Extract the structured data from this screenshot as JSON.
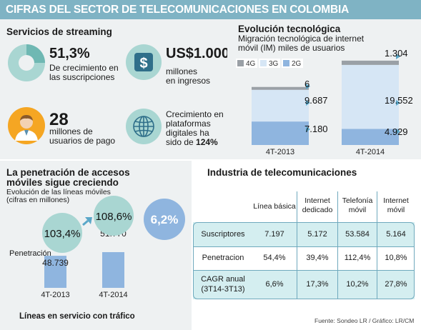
{
  "title": "CIFRAS DEL SECTOR DE TELECOMUNICACIONES EN COLOMBIA",
  "colors": {
    "accent": "#7fb3c4",
    "panel": "#eef1f2",
    "mint": "#a9d6d2",
    "bar_blue": "#8fb5df",
    "bar_light": "#d6e6f5",
    "bar_gray": "#9aa0a6",
    "arrow": "#5aa7c8"
  },
  "streaming": {
    "title": "Servicios de streaming",
    "growth_value": "51,3%",
    "growth_label_1": "De crecimiento en",
    "growth_label_2": "las suscripciones",
    "revenue_value": "US$1.000",
    "revenue_label_1": "millones",
    "revenue_label_2": "en ingresos",
    "users_value": "28",
    "users_label_1": "millones de",
    "users_label_2": "usuarios de pago",
    "platforms_1": "Crecimiento en",
    "platforms_2": "plataformas",
    "platforms_3": "digitales ha",
    "platforms_4a": "sido de ",
    "platforms_4b": "124%",
    "icons": [
      "donut-chart-icon",
      "dollar-icon",
      "user-icon",
      "globe-icon"
    ]
  },
  "tech": {
    "title": "Evolución tecnológica",
    "subtitle_1": "Migración tecnológica de internet",
    "subtitle_2": "móvil (IM) miles de usuarios",
    "legend": [
      "4G",
      "3G",
      "2G"
    ]
  },
  "mobile": {
    "title_1": "La penetración de accesos",
    "title_2": "móviles sigue creciendo",
    "subtitle_1": "Evolución de las líneas móviles",
    "subtitle_2": "(cifras en millones)",
    "penetration_label": "Penetración",
    "bubble_growth": "6,2%",
    "footer": "Líneas en servicio con tráfico"
  },
  "industry": {
    "title": "Industria de telecomunicaciones",
    "columns": [
      {
        "l1": "Línea básica",
        "l2": ""
      },
      {
        "l1": "Internet",
        "l2": "dedicado"
      },
      {
        "l1": "Telefonía",
        "l2": "móvil"
      },
      {
        "l1": "Internet",
        "l2": "móvil"
      }
    ],
    "rows": [
      {
        "label_1": "Suscriptores",
        "label_2": "",
        "values": [
          "7.197",
          "5.172",
          "53.584",
          "5.164"
        ]
      },
      {
        "label_1": "Penetracion",
        "label_2": "",
        "values": [
          "54,4%",
          "39,4%",
          "112,4%",
          "10,8%"
        ]
      },
      {
        "label_1": "CAGR anual",
        "label_2": "(3T14-3T13)",
        "values": [
          "6,6%",
          "17,3%",
          "10,2%",
          "27,8%"
        ]
      }
    ]
  },
  "source": "Fuente: Sondeo LR / Gráfico: LR/CM",
  "chart_data": [
    {
      "type": "bar",
      "title": "Evolución tecnológica",
      "subtitle": "Migración tecnológica de internet móvil (IM) miles de usuarios",
      "stacked": true,
      "categories": [
        "4T-2013",
        "4T-2014"
      ],
      "series": [
        {
          "name": "2G",
          "values": [
            7180,
            4929
          ],
          "labels": [
            "7.180",
            "4.929"
          ]
        },
        {
          "name": "3G",
          "values": [
            9687,
            19552
          ],
          "labels": [
            "9.687",
            "19.552"
          ]
        },
        {
          "name": "4G",
          "values": [
            6,
            1304
          ],
          "labels": [
            "6",
            "1.304"
          ]
        }
      ],
      "legend": "top"
    },
    {
      "type": "bar",
      "title": "La penetración de accesos móviles sigue creciendo",
      "subtitle": "Evolución de las líneas móviles (cifras en millones)",
      "xlabel": "Líneas en servicio con tráfico",
      "categories": [
        "4T-2013",
        "4T-2014"
      ],
      "values": [
        48.739,
        51.77
      ],
      "value_labels": [
        "48.739",
        "51.770"
      ],
      "penetration": [
        "103,4%",
        "108,6%"
      ]
    },
    {
      "type": "table",
      "title": "Industria de telecomunicaciones",
      "columns": [
        "Línea básica",
        "Internet dedicado",
        "Telefonía móvil",
        "Internet móvil"
      ],
      "rows": [
        {
          "label": "Suscriptores",
          "values": [
            "7.197",
            "5.172",
            "53.584",
            "5.164"
          ]
        },
        {
          "label": "Penetracion",
          "values": [
            "54,4%",
            "39,4%",
            "112,4%",
            "10,8%"
          ]
        },
        {
          "label": "CAGR anual (3T14-3T13)",
          "values": [
            "6,6%",
            "17,3%",
            "10,2%",
            "27,8%"
          ]
        }
      ]
    }
  ]
}
